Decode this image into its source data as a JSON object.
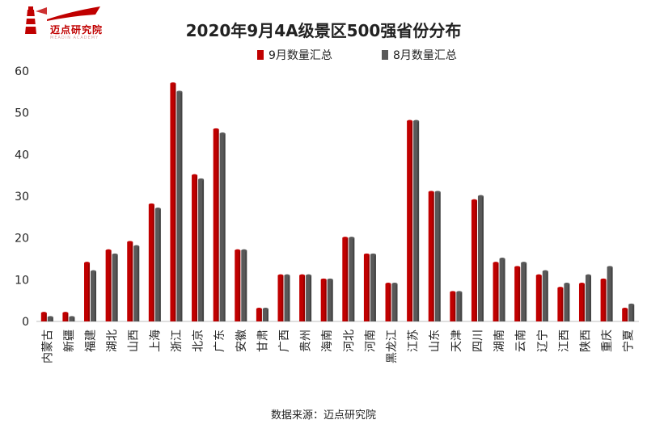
{
  "logo": {
    "text": "迈点研究院",
    "subtext": "MEADIN ACADEMY"
  },
  "source_note": "数据来源：迈点研究院",
  "colors": {
    "sep": "#c00000",
    "aug": "#595959"
  },
  "chart_data": {
    "type": "bar",
    "title": "2020年9月4A级景区500强省份分布",
    "categories": [
      "内蒙古",
      "新疆",
      "福建",
      "湖北",
      "山西",
      "上海",
      "浙江",
      "北京",
      "广东",
      "安徽",
      "甘肃",
      "广西",
      "贵州",
      "海南",
      "河北",
      "河南",
      "黑龙江",
      "江苏",
      "山东",
      "天津",
      "四川",
      "湖南",
      "云南",
      "辽宁",
      "江西",
      "陕西",
      "重庆",
      "宁夏"
    ],
    "series": [
      {
        "name": "9月数量汇总",
        "values": [
          2,
          2,
          14,
          17,
          19,
          28,
          57,
          35,
          46,
          17,
          3,
          11,
          11,
          10,
          20,
          16,
          9,
          48,
          31,
          7,
          29,
          14,
          13,
          11,
          8,
          9,
          10,
          3
        ]
      },
      {
        "name": "8月数量汇总",
        "values": [
          1,
          1,
          12,
          16,
          18,
          27,
          55,
          34,
          45,
          17,
          3,
          11,
          11,
          10,
          20,
          16,
          9,
          48,
          31,
          7,
          30,
          15,
          14,
          12,
          9,
          11,
          13,
          4
        ]
      }
    ],
    "ylim": [
      0,
      60
    ],
    "yticks": [
      0,
      10,
      20,
      30,
      40,
      50,
      60
    ],
    "xlabel": "",
    "ylabel": "",
    "legend_position": "top-center"
  }
}
